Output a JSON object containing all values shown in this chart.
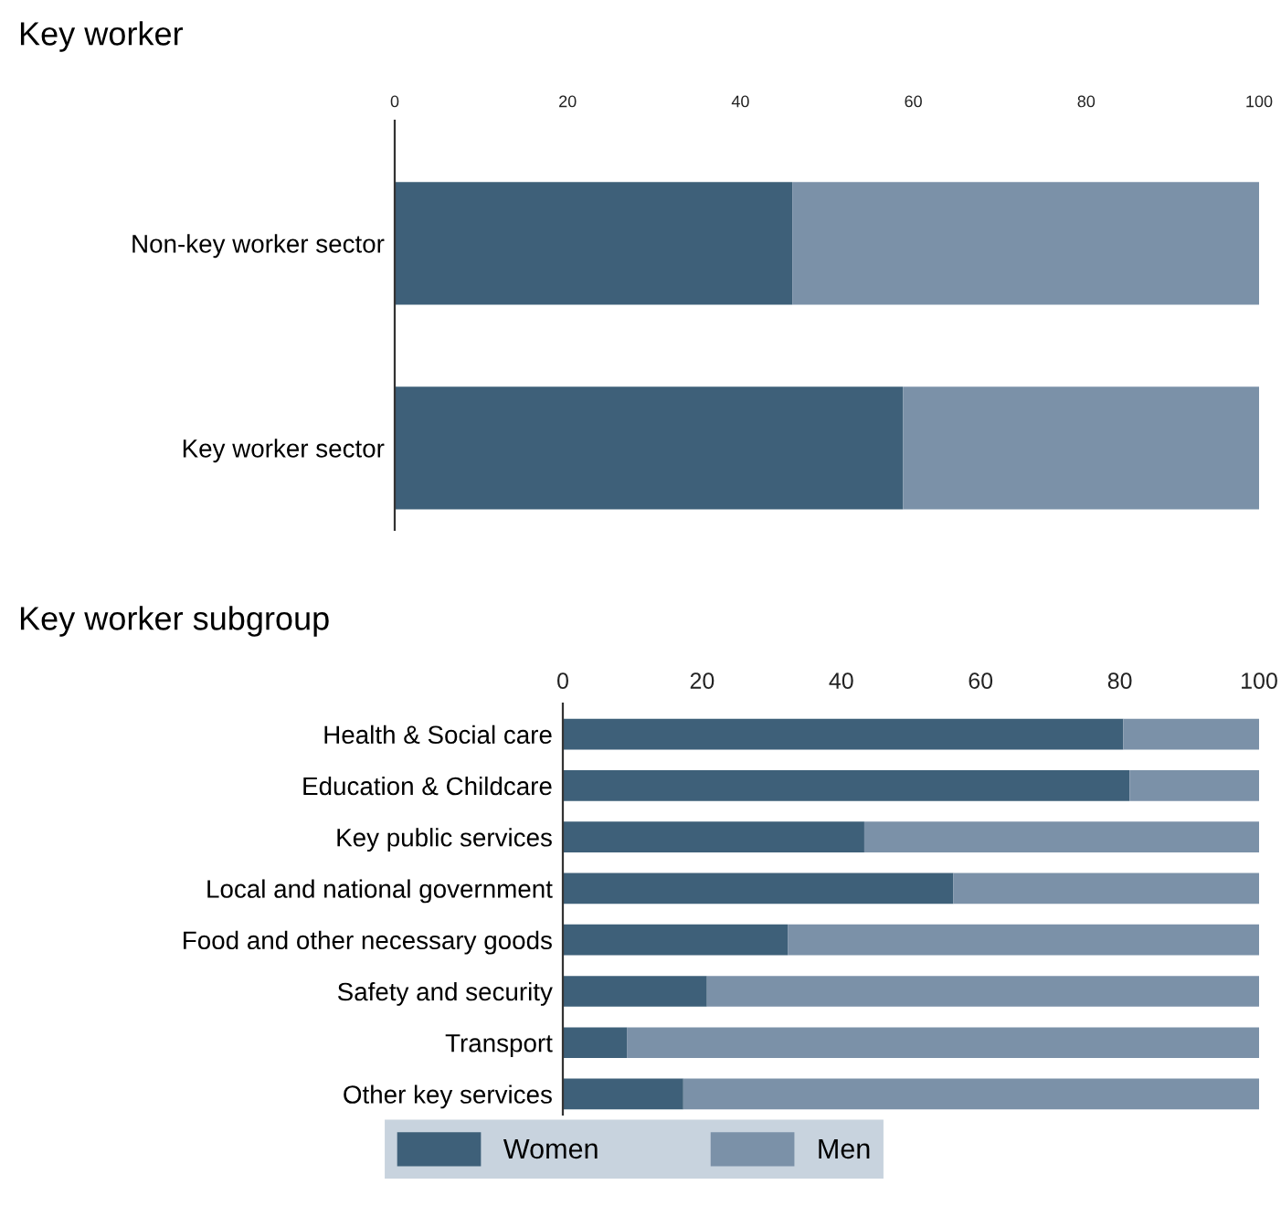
{
  "chart_data": [
    {
      "type": "bar",
      "title": "Key worker",
      "orientation": "horizontal",
      "stacked": true,
      "categories": [
        "Non-key worker sector",
        "Key worker sector"
      ],
      "series": [
        {
          "color": "#3e6079",
          "values": [
            46.0,
            58.8
          ]
        },
        {
          "color": "#7b91a8",
          "values": [
            54.0,
            41.2
          ]
        }
      ],
      "xlim": [
        0,
        100
      ],
      "xticks": [
        0,
        20,
        40,
        60,
        80,
        100
      ],
      "grid": false
    },
    {
      "type": "bar",
      "title": "Key worker subgroup",
      "orientation": "horizontal",
      "stacked": true,
      "categories": [
        "Health & Social care",
        "Education & Childcare",
        "Key public services",
        "Local and national government",
        "Food and other necessary goods",
        "Safety and security",
        "Transport",
        "Other key services"
      ],
      "series": [
        {
          "name": "Women",
          "color": "#3e6079",
          "values": [
            80.5,
            81.4,
            43.3,
            56.1,
            32.3,
            20.7,
            9.2,
            17.3
          ]
        },
        {
          "name": "Men",
          "color": "#7b91a8",
          "values": [
            19.5,
            18.6,
            56.7,
            43.9,
            67.7,
            79.3,
            90.8,
            82.7
          ]
        }
      ],
      "xlim": [
        0,
        100
      ],
      "xticks": [
        0,
        20,
        40,
        60,
        80,
        100
      ],
      "grid": false,
      "legend": "bottom"
    }
  ]
}
